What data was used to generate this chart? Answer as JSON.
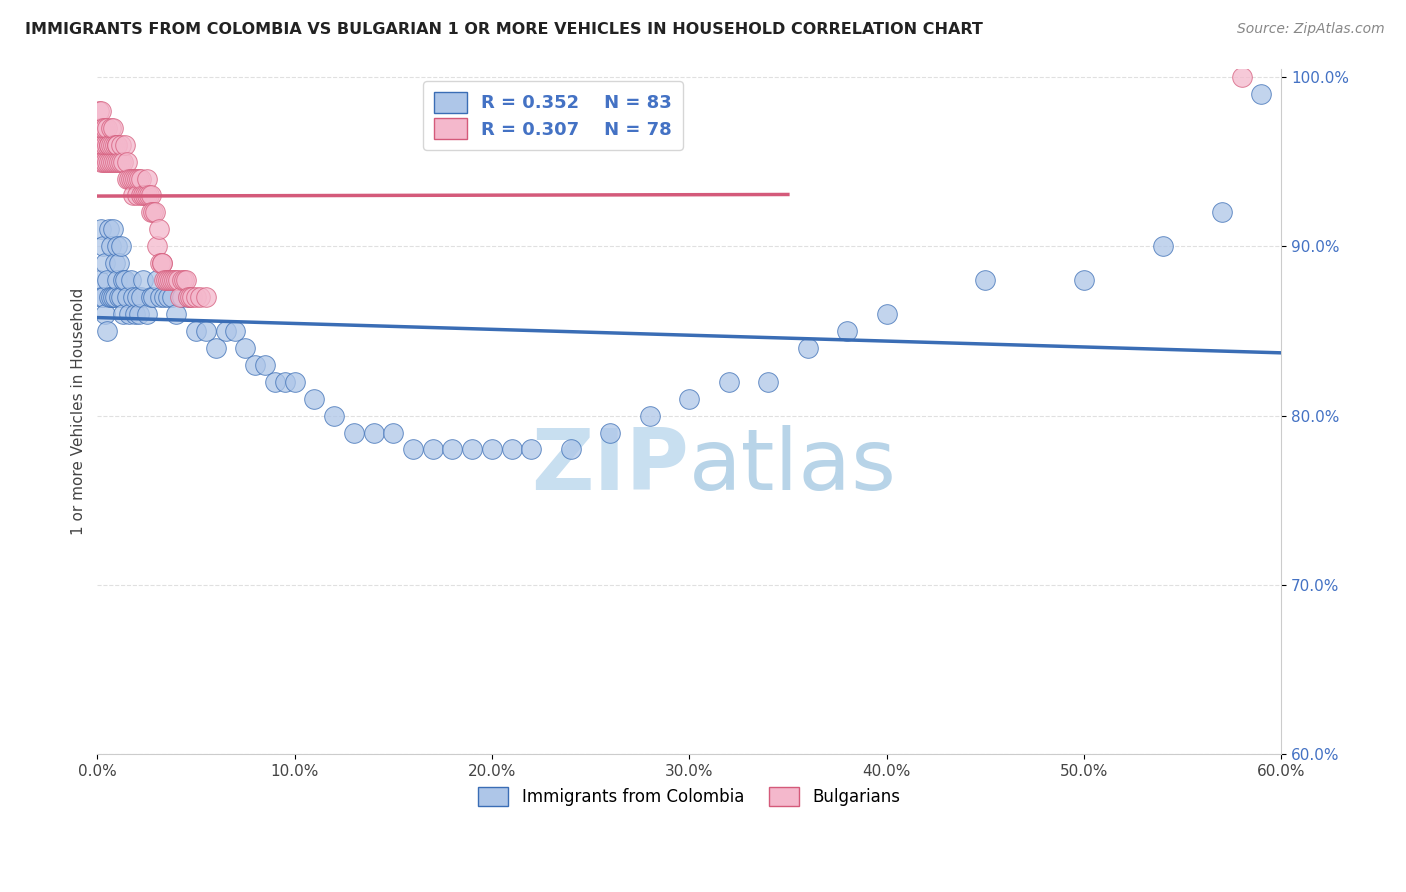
{
  "title": "IMMIGRANTS FROM COLOMBIA VS BULGARIAN 1 OR MORE VEHICLES IN HOUSEHOLD CORRELATION CHART",
  "source": "Source: ZipAtlas.com",
  "xlabel_label": "Immigrants from Colombia",
  "xlabel2_label": "Bulgarians",
  "ylabel": "1 or more Vehicles in Household",
  "xlim": [
    0.0,
    0.6
  ],
  "ylim": [
    0.6,
    1.005
  ],
  "xticks": [
    0.0,
    0.1,
    0.2,
    0.3,
    0.4,
    0.5,
    0.6
  ],
  "yticks": [
    0.6,
    0.7,
    0.8,
    0.9,
    1.0
  ],
  "ytick_labels": [
    "60.0%",
    "70.0%",
    "80.0%",
    "90.0%",
    "100.0%"
  ],
  "xtick_labels": [
    "0.0%",
    "10.0%",
    "20.0%",
    "30.0%",
    "40.0%",
    "50.0%",
    "60.0%"
  ],
  "colombia_R": 0.352,
  "colombia_N": 83,
  "bulgarian_R": 0.307,
  "bulgarian_N": 78,
  "colombia_color": "#aec6e8",
  "bulgarian_color": "#f4b8cc",
  "colombia_line_color": "#3a6db5",
  "bulgarian_line_color": "#d45a7a",
  "colombia_x": [
    0.001,
    0.002,
    0.002,
    0.003,
    0.003,
    0.004,
    0.004,
    0.005,
    0.005,
    0.006,
    0.006,
    0.007,
    0.007,
    0.008,
    0.008,
    0.009,
    0.009,
    0.01,
    0.01,
    0.011,
    0.011,
    0.012,
    0.012,
    0.013,
    0.013,
    0.014,
    0.015,
    0.016,
    0.017,
    0.018,
    0.019,
    0.02,
    0.021,
    0.022,
    0.023,
    0.025,
    0.027,
    0.028,
    0.03,
    0.032,
    0.034,
    0.036,
    0.038,
    0.04,
    0.043,
    0.046,
    0.05,
    0.055,
    0.06,
    0.065,
    0.07,
    0.075,
    0.08,
    0.085,
    0.09,
    0.095,
    0.1,
    0.11,
    0.12,
    0.13,
    0.14,
    0.15,
    0.16,
    0.17,
    0.18,
    0.19,
    0.2,
    0.21,
    0.22,
    0.24,
    0.26,
    0.28,
    0.3,
    0.32,
    0.34,
    0.36,
    0.38,
    0.4,
    0.45,
    0.5,
    0.54,
    0.57,
    0.59
  ],
  "colombia_y": [
    0.88,
    0.87,
    0.91,
    0.87,
    0.9,
    0.86,
    0.89,
    0.85,
    0.88,
    0.87,
    0.91,
    0.87,
    0.9,
    0.87,
    0.91,
    0.89,
    0.87,
    0.88,
    0.9,
    0.89,
    0.87,
    0.9,
    0.87,
    0.88,
    0.86,
    0.88,
    0.87,
    0.86,
    0.88,
    0.87,
    0.86,
    0.87,
    0.86,
    0.87,
    0.88,
    0.86,
    0.87,
    0.87,
    0.88,
    0.87,
    0.87,
    0.87,
    0.87,
    0.86,
    0.87,
    0.87,
    0.85,
    0.85,
    0.84,
    0.85,
    0.85,
    0.84,
    0.83,
    0.83,
    0.82,
    0.82,
    0.82,
    0.81,
    0.8,
    0.79,
    0.79,
    0.79,
    0.78,
    0.78,
    0.78,
    0.78,
    0.78,
    0.78,
    0.78,
    0.78,
    0.79,
    0.8,
    0.81,
    0.82,
    0.82,
    0.84,
    0.85,
    0.86,
    0.88,
    0.88,
    0.9,
    0.92,
    0.99
  ],
  "bulgarian_x": [
    0.001,
    0.001,
    0.002,
    0.002,
    0.002,
    0.003,
    0.003,
    0.003,
    0.004,
    0.004,
    0.004,
    0.005,
    0.005,
    0.005,
    0.006,
    0.006,
    0.006,
    0.007,
    0.007,
    0.007,
    0.008,
    0.008,
    0.008,
    0.009,
    0.009,
    0.01,
    0.01,
    0.01,
    0.011,
    0.012,
    0.012,
    0.013,
    0.014,
    0.015,
    0.015,
    0.016,
    0.017,
    0.018,
    0.018,
    0.019,
    0.02,
    0.02,
    0.021,
    0.022,
    0.022,
    0.023,
    0.024,
    0.025,
    0.025,
    0.026,
    0.027,
    0.027,
    0.028,
    0.029,
    0.03,
    0.031,
    0.032,
    0.033,
    0.033,
    0.034,
    0.035,
    0.036,
    0.037,
    0.038,
    0.039,
    0.04,
    0.041,
    0.042,
    0.043,
    0.044,
    0.045,
    0.046,
    0.047,
    0.048,
    0.05,
    0.052,
    0.055,
    0.58
  ],
  "bulgarian_y": [
    0.98,
    0.96,
    0.97,
    0.95,
    0.98,
    0.96,
    0.95,
    0.97,
    0.95,
    0.96,
    0.97,
    0.95,
    0.96,
    0.97,
    0.96,
    0.95,
    0.96,
    0.95,
    0.96,
    0.97,
    0.95,
    0.96,
    0.97,
    0.95,
    0.96,
    0.96,
    0.95,
    0.96,
    0.95,
    0.95,
    0.96,
    0.95,
    0.96,
    0.94,
    0.95,
    0.94,
    0.94,
    0.93,
    0.94,
    0.94,
    0.94,
    0.93,
    0.94,
    0.93,
    0.94,
    0.93,
    0.93,
    0.93,
    0.94,
    0.93,
    0.93,
    0.92,
    0.92,
    0.92,
    0.9,
    0.91,
    0.89,
    0.89,
    0.89,
    0.88,
    0.88,
    0.88,
    0.88,
    0.88,
    0.88,
    0.88,
    0.88,
    0.87,
    0.88,
    0.88,
    0.88,
    0.87,
    0.87,
    0.87,
    0.87,
    0.87,
    0.87,
    1.0
  ],
  "watermark_zip": "ZIP",
  "watermark_atlas": "atlas",
  "watermark_color": "#d8eaf8",
  "background_color": "#ffffff",
  "grid_color": "#e0e0e0"
}
